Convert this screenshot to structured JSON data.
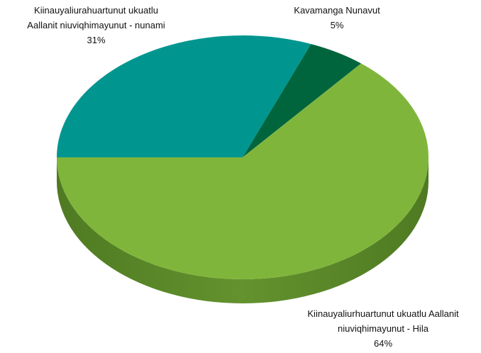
{
  "chart_data": {
    "type": "pie",
    "categories": [
      "Kiinauyaliurahuartunut ukuatlu Aallanit niuviqhimayunut - nunami",
      "Kavamanga Nunavut",
      "Kiinauyaliurhuartunut ukuatlu Aallanit niuviqhimayunut - Hila"
    ],
    "values": [
      31,
      5,
      64
    ],
    "value_labels": [
      "31%",
      "5%",
      "64%"
    ],
    "colors": [
      "#00968f",
      "#00653d",
      "#80b53c"
    ]
  }
}
